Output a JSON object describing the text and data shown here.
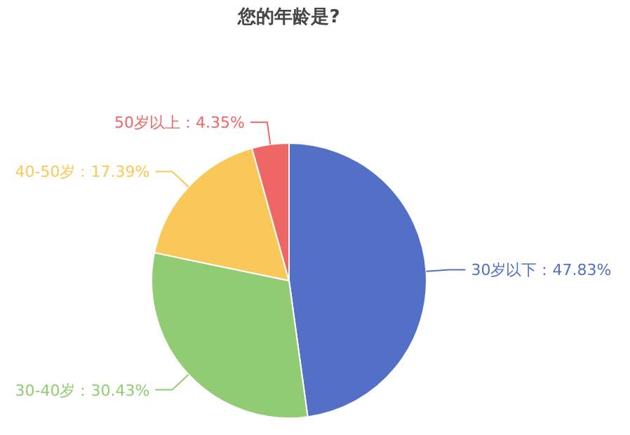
{
  "chart_data": {
    "type": "pie",
    "title": "您的年龄是?",
    "categories": [
      "30岁以下",
      "30-40岁",
      "40-50岁",
      "50岁以上"
    ],
    "values": [
      47.83,
      30.43,
      17.39,
      4.35
    ],
    "value_labels": [
      "47.83%",
      "30.43%",
      "17.39%",
      "4.35%"
    ],
    "colors": [
      "#5470c6",
      "#91cc75",
      "#fac858",
      "#ee6666"
    ]
  }
}
